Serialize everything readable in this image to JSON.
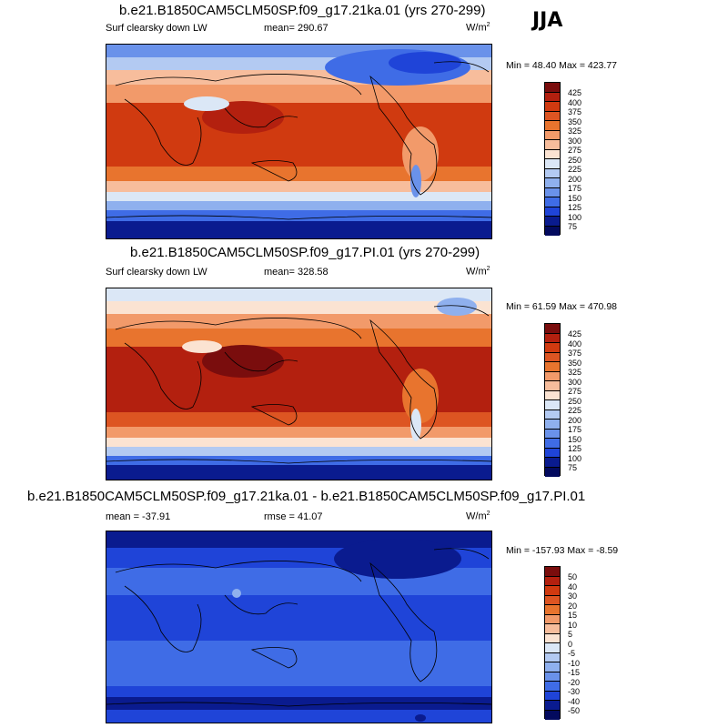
{
  "season": "JJA",
  "units_main": "W/m",
  "units_sup": "2",
  "panels": [
    {
      "title": "b.e21.B1850CAM5CLM50SP.f09_g17.21ka.01 (yrs 270-299)",
      "variable": "Surf clearsky down LW",
      "stat_left": "",
      "stat_mid": "mean= 290.67",
      "minmax": "Min =  48.40 Max = 423.77",
      "ticks": [
        "425",
        "400",
        "375",
        "350",
        "325",
        "300",
        "275",
        "250",
        "225",
        "200",
        "175",
        "150",
        "125",
        "100",
        "75"
      ]
    },
    {
      "title": "b.e21.B1850CAM5CLM50SP.f09_g17.PI.01 (yrs 270-299)",
      "variable": "Surf clearsky down LW",
      "stat_left": "",
      "stat_mid": "mean= 328.58",
      "minmax": "Min =  61.59 Max = 470.98",
      "ticks": [
        "425",
        "400",
        "375",
        "350",
        "325",
        "300",
        "275",
        "250",
        "225",
        "200",
        "175",
        "150",
        "125",
        "100",
        "75"
      ]
    },
    {
      "title": "b.e21.B1850CAM5CLM50SP.f09_g17.21ka.01 - b.e21.B1850CAM5CLM50SP.f09_g17.PI.01",
      "variable": "",
      "stat_left": "mean = -37.91",
      "stat_mid": "rmse =  41.07",
      "minmax": "Min = -157.93 Max =  -8.59",
      "ticks": [
        "50",
        "40",
        "30",
        "20",
        "15",
        "10",
        "5",
        "0",
        "-5",
        "-10",
        "-15",
        "-20",
        "-30",
        "-40",
        "-50"
      ]
    }
  ],
  "chart_data": [
    {
      "type": "heatmap",
      "title": "b.e21.B1850CAM5CLM50SP.f09_g17.21ka.01 (yrs 270-299)",
      "variable": "Surf clearsky down LW",
      "mean": 290.67,
      "min": 48.4,
      "max": 423.77,
      "units": "W/m2",
      "colorbar_levels": [
        75,
        100,
        125,
        150,
        175,
        200,
        225,
        250,
        275,
        300,
        325,
        350,
        375,
        400,
        425
      ]
    },
    {
      "type": "heatmap",
      "title": "b.e21.B1850CAM5CLM50SP.f09_g17.PI.01 (yrs 270-299)",
      "variable": "Surf clearsky down LW",
      "mean": 328.58,
      "min": 61.59,
      "max": 470.98,
      "units": "W/m2",
      "colorbar_levels": [
        75,
        100,
        125,
        150,
        175,
        200,
        225,
        250,
        275,
        300,
        325,
        350,
        375,
        400,
        425
      ]
    },
    {
      "type": "heatmap",
      "title": "b.e21.B1850CAM5CLM50SP.f09_g17.21ka.01 - b.e21.B1850CAM5CLM50SP.f09_g17.PI.01",
      "mean": -37.91,
      "rmse": 41.07,
      "min": -157.93,
      "max": -8.59,
      "units": "W/m2",
      "colorbar_levels": [
        -50,
        -40,
        -30,
        -20,
        -15,
        -10,
        -5,
        0,
        5,
        10,
        15,
        20,
        30,
        40,
        50
      ]
    }
  ],
  "colors": {
    "scale": [
      "#7a0d0d",
      "#b3200f",
      "#d03a10",
      "#dd5522",
      "#e8742e",
      "#f29a6a",
      "#f7bd9c",
      "#fbe3d2",
      "#dbe7f6",
      "#b3caf2",
      "#8fb0ee",
      "#6a92ea",
      "#3f6ce6",
      "#1f44d8",
      "#0a1b8f",
      "#030a5e"
    ]
  }
}
